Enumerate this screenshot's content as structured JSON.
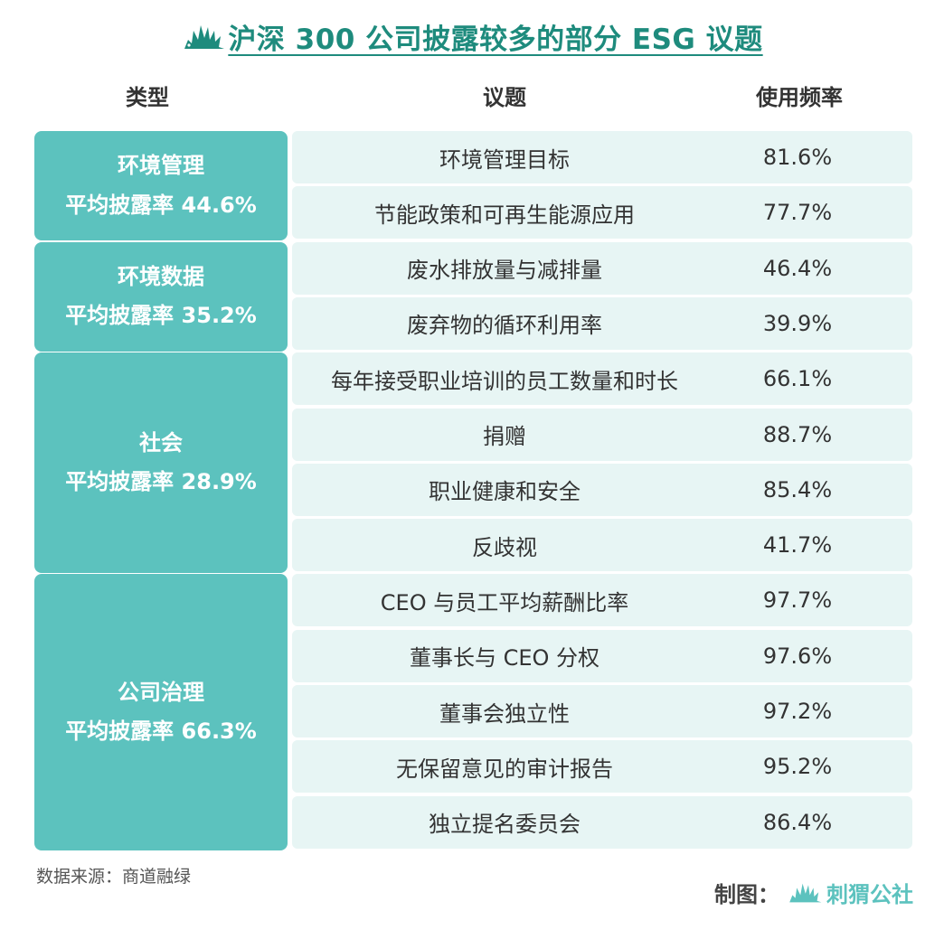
{
  "title": "沪深 300 公司披露较多的部分 ESG 议题",
  "headers": {
    "type": "类型",
    "topic": "议题",
    "freq": "使用频率"
  },
  "colors": {
    "accent": "#5cc2be",
    "title": "#1e8b7d",
    "row_bg": "#e7f5f4"
  },
  "chart_data": {
    "type": "table",
    "title": "沪深 300 公司披露较多的部分 ESG 议题",
    "columns": [
      "类型",
      "议题",
      "使用频率"
    ],
    "categories": [
      {
        "name": "环境管理",
        "avg": "平均披露率 44.6%"
      },
      {
        "name": "环境数据",
        "avg": "平均披露率 35.2%"
      },
      {
        "name": "社会",
        "avg": "平均披露率 28.9%"
      },
      {
        "name": "公司治理",
        "avg": "平均披露率 66.3%"
      }
    ],
    "rows": [
      {
        "category": "环境管理",
        "topic": "环境管理目标",
        "freq": "81.6%"
      },
      {
        "category": "环境管理",
        "topic": "节能政策和可再生能源应用",
        "freq": "77.7%"
      },
      {
        "category": "环境数据",
        "topic": "废水排放量与减排量",
        "freq": "46.4%"
      },
      {
        "category": "环境数据",
        "topic": "废弃物的循环利用率",
        "freq": "39.9%"
      },
      {
        "category": "社会",
        "topic": "每年接受职业培训的员工数量和时长",
        "freq": "66.1%"
      },
      {
        "category": "社会",
        "topic": "捐赠",
        "freq": "88.7%"
      },
      {
        "category": "社会",
        "topic": "职业健康和安全",
        "freq": "85.4%"
      },
      {
        "category": "社会",
        "topic": "反歧视",
        "freq": "41.7%"
      },
      {
        "category": "公司治理",
        "topic": "CEO 与员工平均薪酬比率",
        "freq": "97.7%"
      },
      {
        "category": "公司治理",
        "topic": "董事长与 CEO 分权",
        "freq": "97.6%"
      },
      {
        "category": "公司治理",
        "topic": "董事会独立性",
        "freq": "97.2%"
      },
      {
        "category": "公司治理",
        "topic": "无保留意见的审计报告",
        "freq": "95.2%"
      },
      {
        "category": "公司治理",
        "topic": "独立提名委员会",
        "freq": "86.4%"
      }
    ]
  },
  "source": "数据来源：商道融绿",
  "credit": {
    "label": "制图：",
    "brand": "刺猬公社",
    "logo_icon": "hedgehog-icon"
  }
}
